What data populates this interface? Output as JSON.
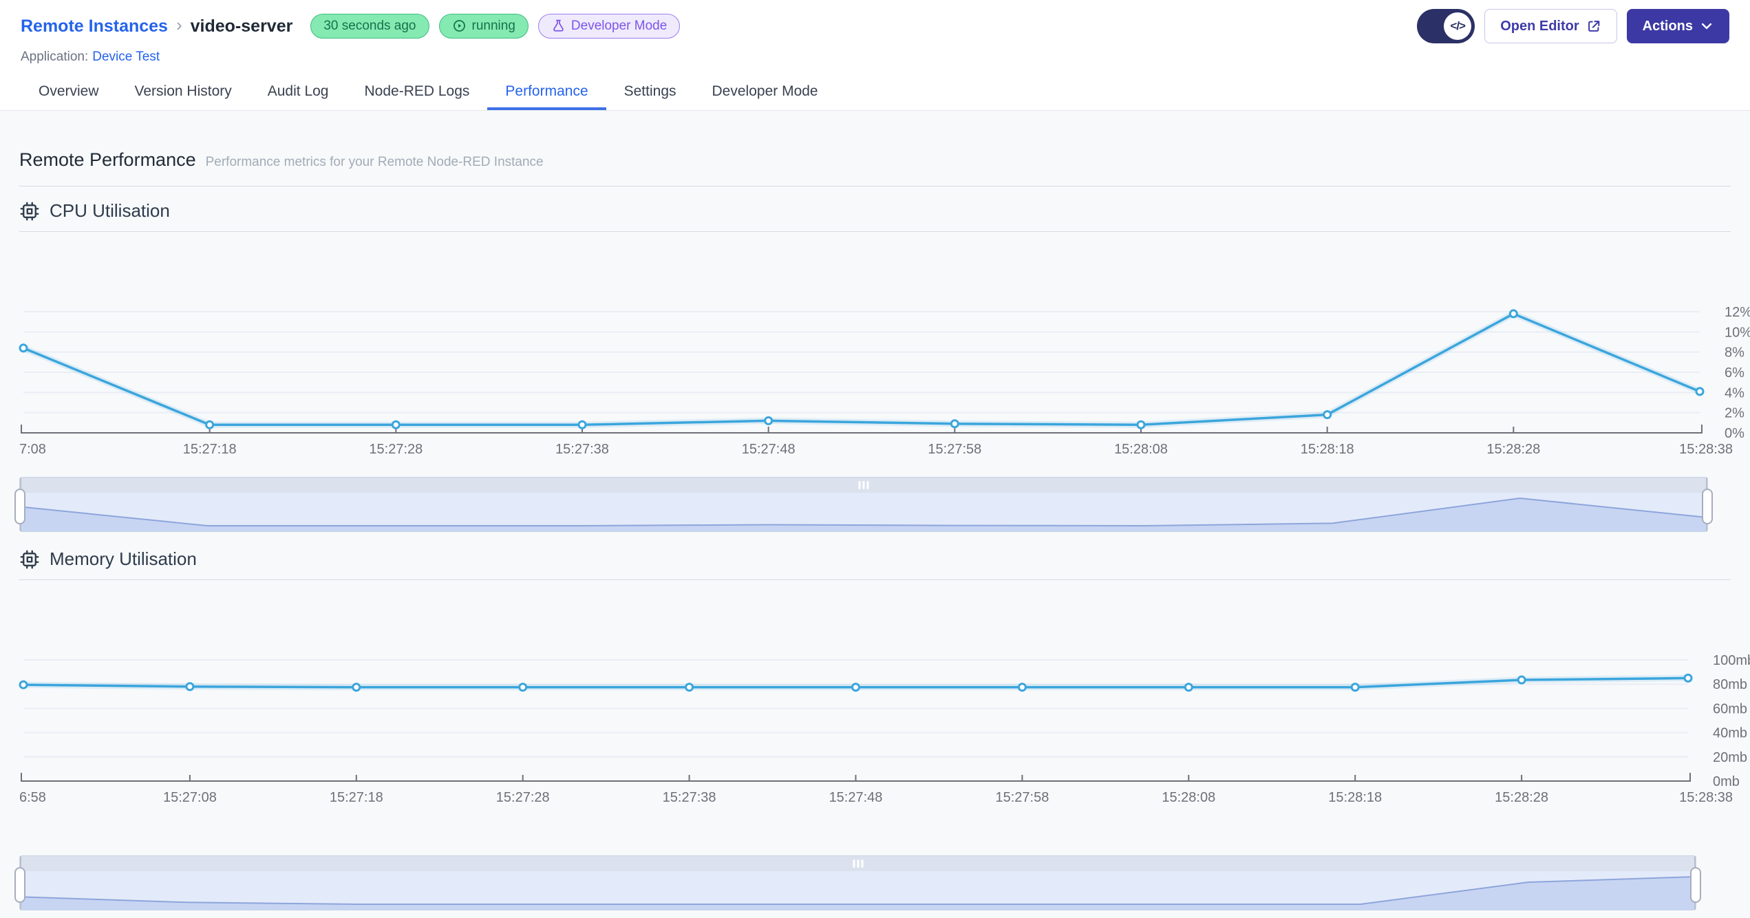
{
  "header": {
    "breadcrumb": {
      "parent": "Remote Instances",
      "separator": "›",
      "current": "video-server"
    },
    "badges": [
      {
        "label": "30 seconds ago",
        "type": "green",
        "icon": "none"
      },
      {
        "label": "running",
        "type": "green",
        "icon": "play-circle"
      },
      {
        "label": "Developer Mode",
        "type": "purple",
        "icon": "flask"
      }
    ],
    "application_label": "Application:",
    "application_link": "Device Test",
    "controls": {
      "toggle_icon": "</>",
      "open_editor_label": "Open Editor",
      "actions_label": "Actions"
    }
  },
  "tabs": {
    "items": [
      "Overview",
      "Version History",
      "Audit Log",
      "Node-RED Logs",
      "Performance",
      "Settings",
      "Developer Mode"
    ],
    "active": "Performance"
  },
  "page": {
    "title": "Remote Performance",
    "subtitle": "Performance metrics for your Remote Node-RED Instance"
  },
  "chart_data": [
    {
      "type": "line",
      "title": "CPU Utilisation",
      "icon": "cpu-chip",
      "x_labels": [
        "7:08",
        "15:27:18",
        "15:27:28",
        "15:27:38",
        "15:27:48",
        "15:27:58",
        "15:28:08",
        "15:28:18",
        "15:28:28",
        "15:28:38"
      ],
      "values": [
        8.4,
        0.8,
        0.8,
        0.8,
        1.2,
        0.9,
        0.8,
        1.8,
        11.8,
        4.1
      ],
      "y_ticks": [
        "0%",
        "2%",
        "4%",
        "6%",
        "8%",
        "10%",
        "12%"
      ],
      "y_tick_values": [
        0,
        2,
        4,
        6,
        8,
        10,
        12
      ],
      "ylim": [
        0,
        12
      ],
      "line_color": "#3ba5dc",
      "grid": true,
      "legend": "none",
      "has_range_slider": true
    },
    {
      "type": "line",
      "title": "Memory Utilisation",
      "icon": "cpu-chip",
      "x_labels": [
        "6:58",
        "15:27:08",
        "15:27:18",
        "15:27:28",
        "15:27:38",
        "15:27:48",
        "15:27:58",
        "15:28:08",
        "15:28:18",
        "15:28:28",
        "15:28:38"
      ],
      "values": [
        79.5,
        78,
        77.5,
        77.5,
        77.5,
        77.5,
        77.5,
        77.5,
        77.5,
        83.5,
        85
      ],
      "y_ticks": [
        "0mb",
        "20mb",
        "40mb",
        "60mb",
        "80mb",
        "100mb"
      ],
      "y_tick_values": [
        0,
        20,
        40,
        60,
        80,
        100
      ],
      "ylim": [
        0,
        100
      ],
      "line_color": "#3ba5dc",
      "grid": true,
      "legend": "none",
      "has_range_slider": true
    }
  ],
  "colors": {
    "accent_blue": "#2563eb",
    "chart_line": "#3ba5dc",
    "axis": "#6e7079",
    "gridline": "#e9eef5",
    "badge_green_bg": "#85e9b2",
    "badge_green_text": "#15734a",
    "badge_purple_text": "#7e55e8",
    "primary_button_bg": "#3c39a4",
    "toggle_bg": "#2b3166",
    "slider_area_bg": "#e3eaf9",
    "slider_shadow_fill": "#c7d5f3",
    "slider_shadow_line": "#8ea5db"
  }
}
